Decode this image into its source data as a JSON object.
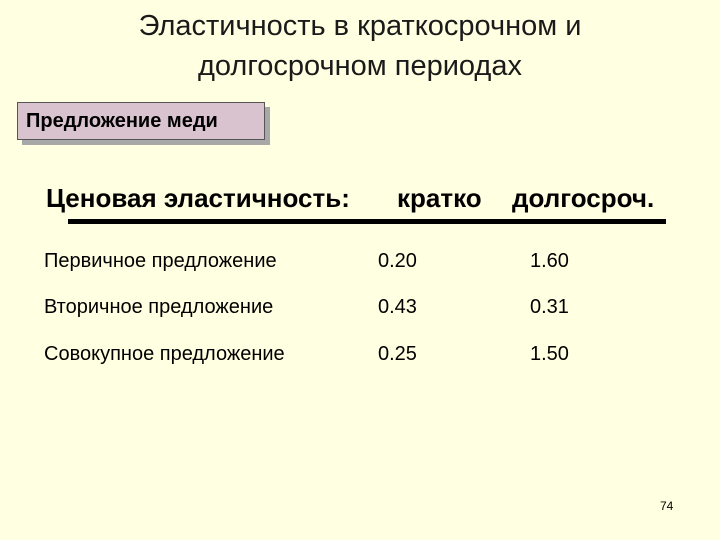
{
  "title": {
    "line1": "Эластичность в краткосрочном и",
    "line2": "долгосрочном периодах"
  },
  "label_box": "Предложение меди",
  "table": {
    "headers": [
      "Ценовая эластичность:",
      "кратко",
      "долгосроч."
    ],
    "rows": [
      {
        "label": "Первичное предложение",
        "short": "0.20",
        "long": "1.60"
      },
      {
        "label": "Вторичное предложение",
        "short": "0.43",
        "long": "0.31"
      },
      {
        "label": "Совокупное предложение",
        "short": "0.25",
        "long": "1.50"
      }
    ]
  },
  "page_number": "74"
}
